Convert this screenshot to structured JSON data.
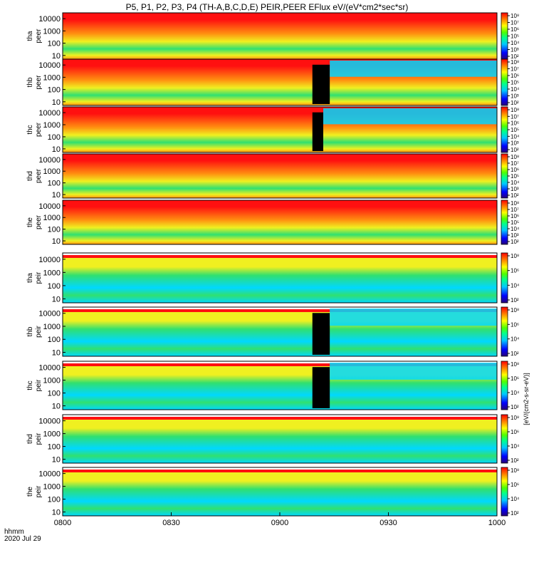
{
  "chart_data": {
    "type": "heatmap",
    "title": "P5, P1, P2, P3, P4 (TH-A,B,C,D,E) PEIR,PEER EFlux eV/(eV*cm2*sec*sr)",
    "xlabel": "hhmm",
    "date_label": "2020 Jul 29",
    "x_ticks": [
      "0800",
      "0830",
      "0900",
      "0930",
      "1000"
    ],
    "x_range_hours": [
      8.0,
      10.0
    ],
    "y_ticks": [
      "10",
      "100",
      "1000",
      "10000"
    ],
    "y_range_eV": [
      5,
      30000
    ],
    "y_scale": "log",
    "colorbar_label": "[eV/(cm2-s-sr-eV)]",
    "colorbar_ticks_peer": [
      "10²",
      "10³",
      "10⁴",
      "10⁵",
      "10⁶",
      "10⁷",
      "10⁸"
    ],
    "colorbar_ticks_peir": [
      "10²",
      "10⁴",
      "10⁶",
      "10⁸"
    ],
    "colors": {
      "low": "#0000c8",
      "cyan": "#00d8ff",
      "green": "#30e070",
      "yellow": "#f0f020",
      "orange": "#ff9010",
      "red": "#ff1010",
      "gap": "#000000"
    },
    "series": [
      {
        "name": "tha peer",
        "probe": "tha",
        "instrument": "peer",
        "label_probe": "tha",
        "label_inst": "peer"
      },
      {
        "name": "thb peer",
        "probe": "thb",
        "instrument": "peer",
        "label_probe": "thb",
        "label_inst": "peer",
        "gap_hours": [
          9.15,
          9.23
        ]
      },
      {
        "name": "thc peer",
        "probe": "thc",
        "instrument": "peer",
        "label_probe": "thc",
        "label_inst": "peer",
        "gap_hours": [
          9.15,
          9.2
        ]
      },
      {
        "name": "thd peer",
        "probe": "thd",
        "instrument": "peer",
        "label_probe": "thd",
        "label_inst": "peer"
      },
      {
        "name": "the peer",
        "probe": "the",
        "instrument": "peer",
        "label_probe": "the",
        "label_inst": "peer"
      },
      {
        "name": "tha peir",
        "probe": "tha",
        "instrument": "peir",
        "label_probe": "tha",
        "label_inst": "peir"
      },
      {
        "name": "thb peir",
        "probe": "thb",
        "instrument": "peir",
        "label_probe": "thb",
        "label_inst": "peir",
        "gap_hours": [
          9.15,
          9.23
        ]
      },
      {
        "name": "thc peir",
        "probe": "thc",
        "instrument": "peir",
        "label_probe": "thc",
        "label_inst": "peir",
        "gap_hours": [
          9.15,
          9.23
        ]
      },
      {
        "name": "thd peir",
        "probe": "thd",
        "instrument": "peir",
        "label_probe": "thd",
        "label_inst": "peir"
      },
      {
        "name": "the peir",
        "probe": "the",
        "instrument": "peir",
        "label_probe": "the",
        "label_inst": "peir"
      }
    ]
  }
}
